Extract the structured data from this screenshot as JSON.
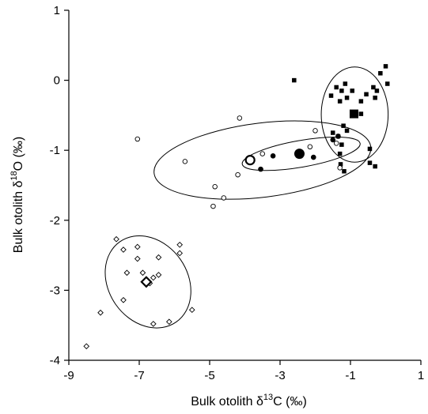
{
  "chart_data": {
    "type": "scatter",
    "title": "",
    "xlabel": {
      "prefix": "Bulk otolith δ",
      "sup": "13",
      "suffix": "C (‰)"
    },
    "ylabel": {
      "prefix": "Bulk otolith δ",
      "sup": "18",
      "suffix": "O (‰)"
    },
    "xlim": [
      -9,
      1
    ],
    "ylim": [
      -4,
      1
    ],
    "xticks": [
      -9,
      -7,
      -5,
      -3,
      -1,
      1
    ],
    "yticks": [
      1,
      0,
      -1,
      -2,
      -3,
      -4
    ],
    "xtick_labels": [
      "-9",
      "-7",
      "-5",
      "-3",
      "-1",
      "1"
    ],
    "ytick_labels": [
      "1",
      "0",
      "-1",
      "-2",
      "-3",
      "-4"
    ],
    "grid": false,
    "legend": "none",
    "series": [
      {
        "marker": "filled-square",
        "points": [
          [
            -2.6,
            0.0
          ],
          [
            -1.55,
            -0.22
          ],
          [
            -1.4,
            -0.1
          ],
          [
            -1.25,
            -0.15
          ],
          [
            -1.3,
            -0.3
          ],
          [
            -1.15,
            -0.05
          ],
          [
            -1.1,
            -0.25
          ],
          [
            -0.95,
            -0.15
          ],
          [
            -0.7,
            -0.3
          ],
          [
            -0.55,
            -0.2
          ],
          [
            -0.35,
            -0.1
          ],
          [
            -0.3,
            -0.25
          ],
          [
            -0.15,
            0.1
          ],
          [
            0.0,
            0.2
          ],
          [
            0.05,
            -0.05
          ],
          [
            -0.25,
            -0.15
          ],
          [
            -1.5,
            -0.75
          ],
          [
            -1.35,
            -0.8
          ],
          [
            -1.2,
            -0.65
          ],
          [
            -1.1,
            -0.72
          ],
          [
            -1.25,
            -0.92
          ],
          [
            -1.3,
            -1.05
          ],
          [
            -1.28,
            -1.2
          ],
          [
            -1.18,
            -1.3
          ],
          [
            -0.7,
            -0.48
          ],
          [
            -0.45,
            -0.98
          ],
          [
            -0.45,
            -1.18
          ],
          [
            -0.3,
            -1.23
          ]
        ],
        "mean": [
          -0.9,
          -0.48
        ],
        "ellipse": {
          "center": [
            -0.88,
            -0.49
          ],
          "rx": 0.95,
          "ry": 0.68,
          "angle_deg": 0
        }
      },
      {
        "marker": "filled-circle",
        "points": [
          [
            -3.2,
            -1.08
          ],
          [
            -3.55,
            -1.27
          ],
          [
            -2.05,
            -1.1
          ],
          [
            -1.35,
            -0.8
          ],
          [
            -1.5,
            -0.85
          ]
        ],
        "mean": [
          -2.45,
          -1.05
        ],
        "ellipse": {
          "center": [
            -2.4,
            -1.05
          ],
          "rx": 1.7,
          "ry": 0.19,
          "angle_deg": 10
        }
      },
      {
        "marker": "open-circle",
        "points": [
          [
            -7.05,
            -0.84
          ],
          [
            -5.7,
            -1.16
          ],
          [
            -4.15,
            -0.54
          ],
          [
            -4.2,
            -1.35
          ],
          [
            -4.6,
            -1.68
          ],
          [
            -4.85,
            -1.52
          ],
          [
            -4.9,
            -1.8
          ],
          [
            -3.5,
            -1.05
          ],
          [
            -2.15,
            -0.95
          ],
          [
            -2.0,
            -0.72
          ],
          [
            -1.4,
            -0.9
          ],
          [
            -1.3,
            -1.25
          ]
        ],
        "mean": [
          -3.85,
          -1.14
        ],
        "ellipse": {
          "center": [
            -3.5,
            -1.14
          ],
          "rx": 3.1,
          "ry": 0.53,
          "angle_deg": 7
        }
      },
      {
        "marker": "open-diamond",
        "points": [
          [
            -8.5,
            -3.8
          ],
          [
            -8.1,
            -3.32
          ],
          [
            -7.65,
            -2.27
          ],
          [
            -7.45,
            -2.42
          ],
          [
            -7.05,
            -2.38
          ],
          [
            -7.05,
            -2.55
          ],
          [
            -7.35,
            -2.75
          ],
          [
            -6.9,
            -2.75
          ],
          [
            -7.45,
            -3.14
          ],
          [
            -6.7,
            -2.9
          ],
          [
            -6.6,
            -2.82
          ],
          [
            -6.45,
            -2.78
          ],
          [
            -6.45,
            -2.53
          ],
          [
            -5.85,
            -2.35
          ],
          [
            -5.85,
            -2.47
          ],
          [
            -5.5,
            -3.28
          ],
          [
            -6.15,
            -3.45
          ],
          [
            -6.6,
            -3.48
          ]
        ],
        "mean": [
          -6.8,
          -2.88
        ],
        "ellipse": {
          "center": [
            -6.75,
            -2.88
          ],
          "rx": 1.12,
          "ry": 0.7,
          "angle_deg": 35
        }
      }
    ]
  }
}
